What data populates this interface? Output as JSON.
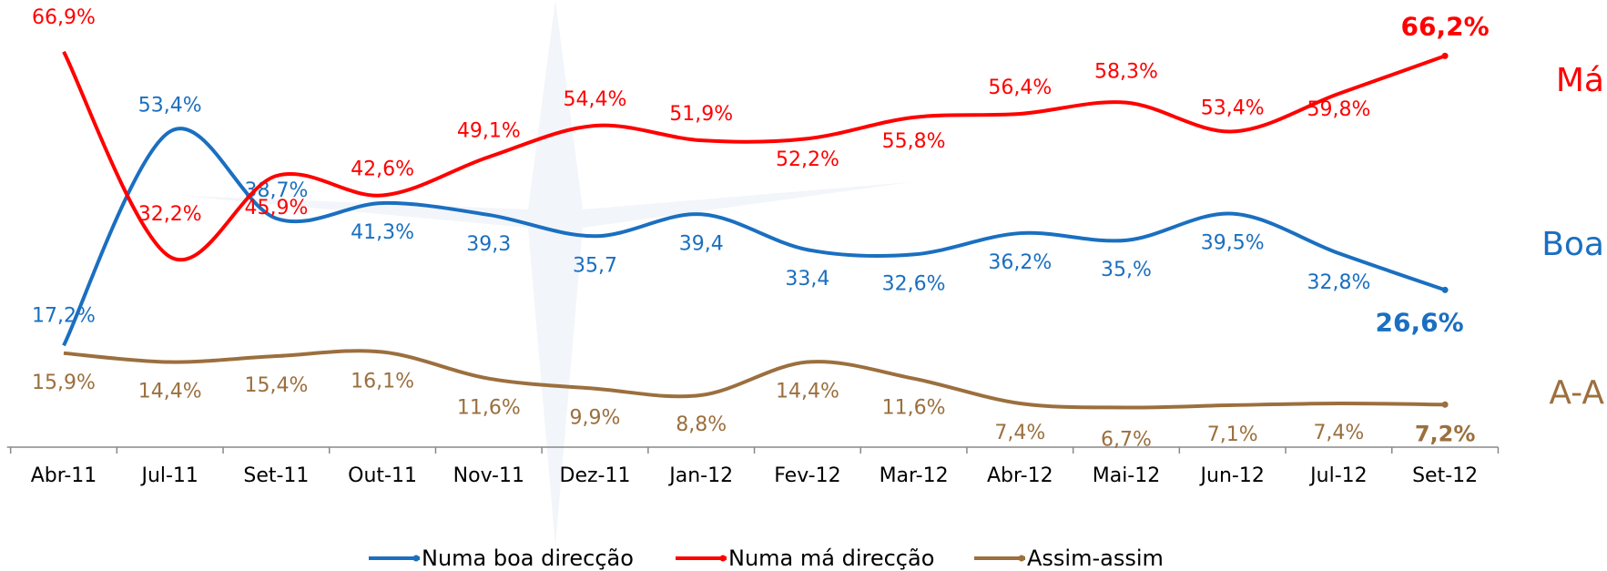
{
  "chart_data": {
    "type": "line",
    "categories": [
      "Abr-11",
      "Jul-11",
      "Set-11",
      "Out-11",
      "Nov-11",
      "Dez-11",
      "Jan-12",
      "Fev-12",
      "Mar-12",
      "Abr-12",
      "Mai-12",
      "Jun-12",
      "Jul-12",
      "Set-12"
    ],
    "series": [
      {
        "name": "Numa boa direcção",
        "color": "#1a6fc0",
        "values": [
          17.2,
          53.4,
          38.7,
          41.3,
          39.3,
          35.7,
          39.4,
          33.4,
          32.6,
          36.2,
          35,
          39.5,
          32.8,
          26.6
        ],
        "value_labels": [
          "17,2%",
          "53,4%",
          "38,7%",
          "41,3%",
          "39,3",
          "35,7",
          "39,4",
          "33,4",
          "32,6%",
          "36,2%",
          "35,%",
          "39,5%",
          "32,8%",
          "26,6%"
        ]
      },
      {
        "name": "Numa má direcção",
        "color": "#ff0000",
        "values": [
          66.9,
          32.2,
          45.9,
          42.6,
          49.1,
          54.4,
          51.9,
          52.2,
          55.8,
          56.4,
          58.3,
          53.4,
          59.8,
          66.2
        ],
        "value_labels": [
          "66,9%",
          "32,2%",
          "45,9%",
          "42,6%",
          "49,1%",
          "54,4%",
          "51,9%",
          "52,2%",
          "55,8%",
          "56,4%",
          "58,3%",
          "53,4%",
          "59,8%",
          "66,2%"
        ]
      },
      {
        "name": "Assim-assim",
        "color": "#9b6f3e",
        "values": [
          15.9,
          14.4,
          15.4,
          16.1,
          11.6,
          9.9,
          8.8,
          14.4,
          11.6,
          7.4,
          6.7,
          7.1,
          7.4,
          7.2
        ],
        "value_labels": [
          "15,9%",
          "14,4%",
          "15,4%",
          "16,1%",
          "11,6%",
          "9,9%",
          "8,8%",
          "14,4%",
          "11,6%",
          "7,4%",
          "6,7%",
          "7,1%",
          "7,4%",
          "7,2%"
        ]
      }
    ],
    "annotations": [
      "Boa",
      "Má",
      "A-A"
    ]
  }
}
